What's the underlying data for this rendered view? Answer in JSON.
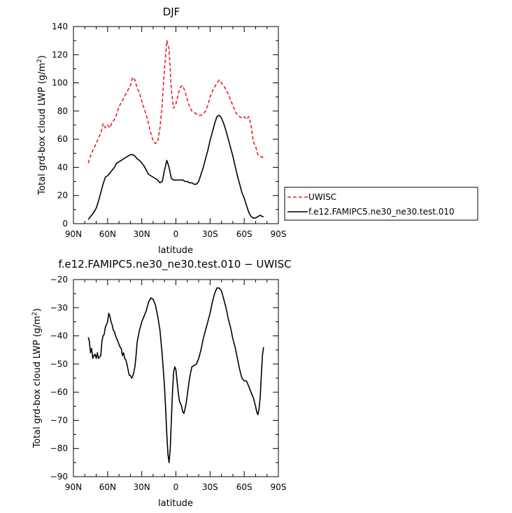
{
  "chart_data": [
    {
      "type": "line",
      "title": "DJF",
      "xlabel": "latitude",
      "ylabel": "Total grd-box cloud LWP (g/m²)",
      "xlim": [
        90,
        -90
      ],
      "ylim": [
        0,
        140
      ],
      "x_ticks": [
        90,
        60,
        30,
        0,
        -30,
        -60,
        -90
      ],
      "x_tick_labels": [
        "90N",
        "60N",
        "30N",
        "0",
        "30S",
        "60S",
        "90S"
      ],
      "y_ticks": [
        0,
        20,
        40,
        60,
        80,
        100,
        120,
        140
      ],
      "y_tick_labels": [
        "0",
        "20",
        "40",
        "60",
        "80",
        "100",
        "120",
        "140"
      ],
      "legend_position": "right",
      "series": [
        {
          "name": "UWISC",
          "color": "#e8202a",
          "dash": "dashed",
          "x": [
            77,
            75,
            73,
            70,
            68,
            66,
            64,
            62,
            60,
            58,
            56,
            54,
            52,
            50,
            48,
            46,
            44,
            42,
            40,
            38,
            36,
            34,
            32,
            30,
            28,
            26,
            24,
            22,
            20,
            18,
            16,
            14,
            12,
            10,
            8,
            6,
            4,
            2,
            0,
            -2,
            -4,
            -6,
            -8,
            -10,
            -12,
            -14,
            -16,
            -18,
            -20,
            -22,
            -24,
            -26,
            -28,
            -30,
            -32,
            -34,
            -36,
            -38,
            -40,
            -42,
            -44,
            -46,
            -48,
            -50,
            -52,
            -54,
            -56,
            -58,
            -60,
            -62,
            -64,
            -66,
            -68,
            -70,
            -72,
            -74,
            -76,
            -77
          ],
          "y": [
            43,
            48,
            52,
            57,
            61,
            64,
            71,
            68,
            70,
            68,
            72,
            74,
            78,
            83,
            86,
            89,
            92,
            95,
            98,
            104,
            102,
            96,
            93,
            87,
            82,
            77,
            71,
            64,
            59,
            57,
            58,
            68,
            85,
            110,
            130,
            124,
            95,
            82,
            85,
            92,
            97,
            98,
            94,
            88,
            83,
            80,
            79,
            78,
            77,
            77,
            78,
            80,
            84,
            90,
            94,
            97,
            100,
            102,
            100,
            98,
            95,
            92,
            88,
            84,
            80,
            77,
            76,
            75,
            76,
            74,
            76,
            70,
            58,
            55,
            49,
            48,
            47,
            48
          ]
        },
        {
          "name": "f.e12.FAMIPC5.ne30_ne30.test.010",
          "color": "#000000",
          "dash": "solid",
          "x": [
            77,
            75,
            73,
            70,
            68,
            66,
            64,
            62,
            60,
            58,
            56,
            54,
            52,
            50,
            48,
            46,
            44,
            42,
            40,
            38,
            36,
            34,
            32,
            30,
            28,
            26,
            24,
            22,
            20,
            18,
            16,
            14,
            12,
            10,
            8,
            6,
            4,
            2,
            0,
            -2,
            -4,
            -6,
            -8,
            -10,
            -12,
            -14,
            -16,
            -18,
            -20,
            -22,
            -24,
            -26,
            -28,
            -30,
            -32,
            -34,
            -36,
            -38,
            -40,
            -42,
            -44,
            -46,
            -48,
            -50,
            -52,
            -54,
            -56,
            -58,
            -60,
            -62,
            -64,
            -66,
            -68,
            -70,
            -72,
            -74,
            -76,
            -77
          ],
          "y": [
            3,
            5,
            7,
            11,
            16,
            22,
            28,
            33,
            34,
            36,
            38,
            40,
            43,
            44,
            45,
            46,
            47,
            48,
            49,
            49,
            48,
            46,
            45,
            43,
            41,
            38,
            35,
            34,
            33,
            32,
            31,
            29,
            30,
            38,
            45,
            40,
            32,
            31,
            31,
            31,
            31,
            31,
            30,
            30,
            29,
            29,
            28,
            28,
            30,
            35,
            40,
            46,
            52,
            59,
            65,
            71,
            76,
            77,
            75,
            71,
            66,
            60,
            54,
            48,
            41,
            34,
            28,
            22,
            18,
            13,
            8,
            5,
            4,
            4,
            5,
            6,
            5,
            5
          ]
        }
      ]
    },
    {
      "type": "line",
      "title": "f.e12.FAMIPC5.ne30_ne30.test.010 − UWISC",
      "xlabel": "latitude",
      "ylabel": "Total grd-box cloud LWP (g/m²)",
      "xlim": [
        90,
        -90
      ],
      "ylim": [
        -90,
        -20
      ],
      "x_ticks": [
        90,
        60,
        30,
        0,
        -30,
        -60,
        -90
      ],
      "x_tick_labels": [
        "90N",
        "60N",
        "30N",
        "0",
        "30S",
        "60S",
        "90S"
      ],
      "y_ticks": [
        -90,
        -80,
        -70,
        -60,
        -50,
        -40,
        -30,
        -20
      ],
      "y_tick_labels": [
        "−90",
        "−80",
        "−70",
        "−60",
        "−50",
        "−40",
        "−30",
        "−20"
      ],
      "series": [
        {
          "color": "#000000",
          "dash": "solid",
          "x": [
            77,
            76,
            75,
            74,
            73,
            72,
            71,
            70,
            69,
            68,
            67,
            66,
            65,
            64,
            63,
            62,
            61,
            60,
            59,
            58,
            57,
            56,
            55,
            54,
            53,
            52,
            51,
            50,
            49,
            48,
            47,
            46,
            45,
            44,
            43,
            42,
            41,
            40,
            39,
            38,
            37,
            36,
            35,
            34,
            32,
            30,
            28,
            26,
            24,
            22,
            20,
            18,
            16,
            14,
            12,
            10,
            9,
            8,
            7,
            6,
            5,
            4,
            3,
            2,
            1,
            0,
            -1,
            -2,
            -3,
            -4,
            -5,
            -6,
            -7,
            -8,
            -9,
            -10,
            -12,
            -14,
            -16,
            -18,
            -20,
            -22,
            -24,
            -26,
            -28,
            -30,
            -32,
            -34,
            -36,
            -38,
            -40,
            -42,
            -44,
            -46,
            -48,
            -50,
            -52,
            -54,
            -56,
            -58,
            -60,
            -62,
            -64,
            -66,
            -68,
            -70,
            -71,
            -72,
            -73,
            -74,
            -75,
            -76,
            -77
          ],
          "y": [
            -40.5,
            -42,
            -46,
            -44.5,
            -48,
            -47,
            -46.5,
            -48,
            -46,
            -48,
            -47.5,
            -47,
            -42,
            -40,
            -39.5,
            -37,
            -36,
            -35,
            -32,
            -33,
            -35,
            -36,
            -38,
            -38.5,
            -40,
            -41,
            -42,
            -43,
            -44,
            -44.5,
            -47,
            -46,
            -48,
            -48.5,
            -50,
            -52,
            -54,
            -54,
            -55,
            -54.5,
            -53,
            -51,
            -47,
            -42,
            -38,
            -35,
            -33,
            -31,
            -28,
            -26.5,
            -27,
            -29,
            -33,
            -38,
            -47,
            -58,
            -66,
            -75,
            -82,
            -85,
            -80,
            -70,
            -60,
            -53,
            -51,
            -52,
            -56,
            -60,
            -63,
            -64,
            -65,
            -67,
            -67.5,
            -66,
            -64,
            -61,
            -55,
            -51,
            -50.5,
            -50,
            -48,
            -45,
            -41,
            -38,
            -35,
            -32,
            -28,
            -25,
            -23,
            -23,
            -24,
            -27,
            -30,
            -34,
            -37,
            -41,
            -44,
            -48,
            -52,
            -55,
            -56,
            -56,
            -58,
            -60,
            -62,
            -65,
            -67,
            -68,
            -66,
            -62,
            -54,
            -47,
            -44
          ]
        }
      ]
    }
  ]
}
